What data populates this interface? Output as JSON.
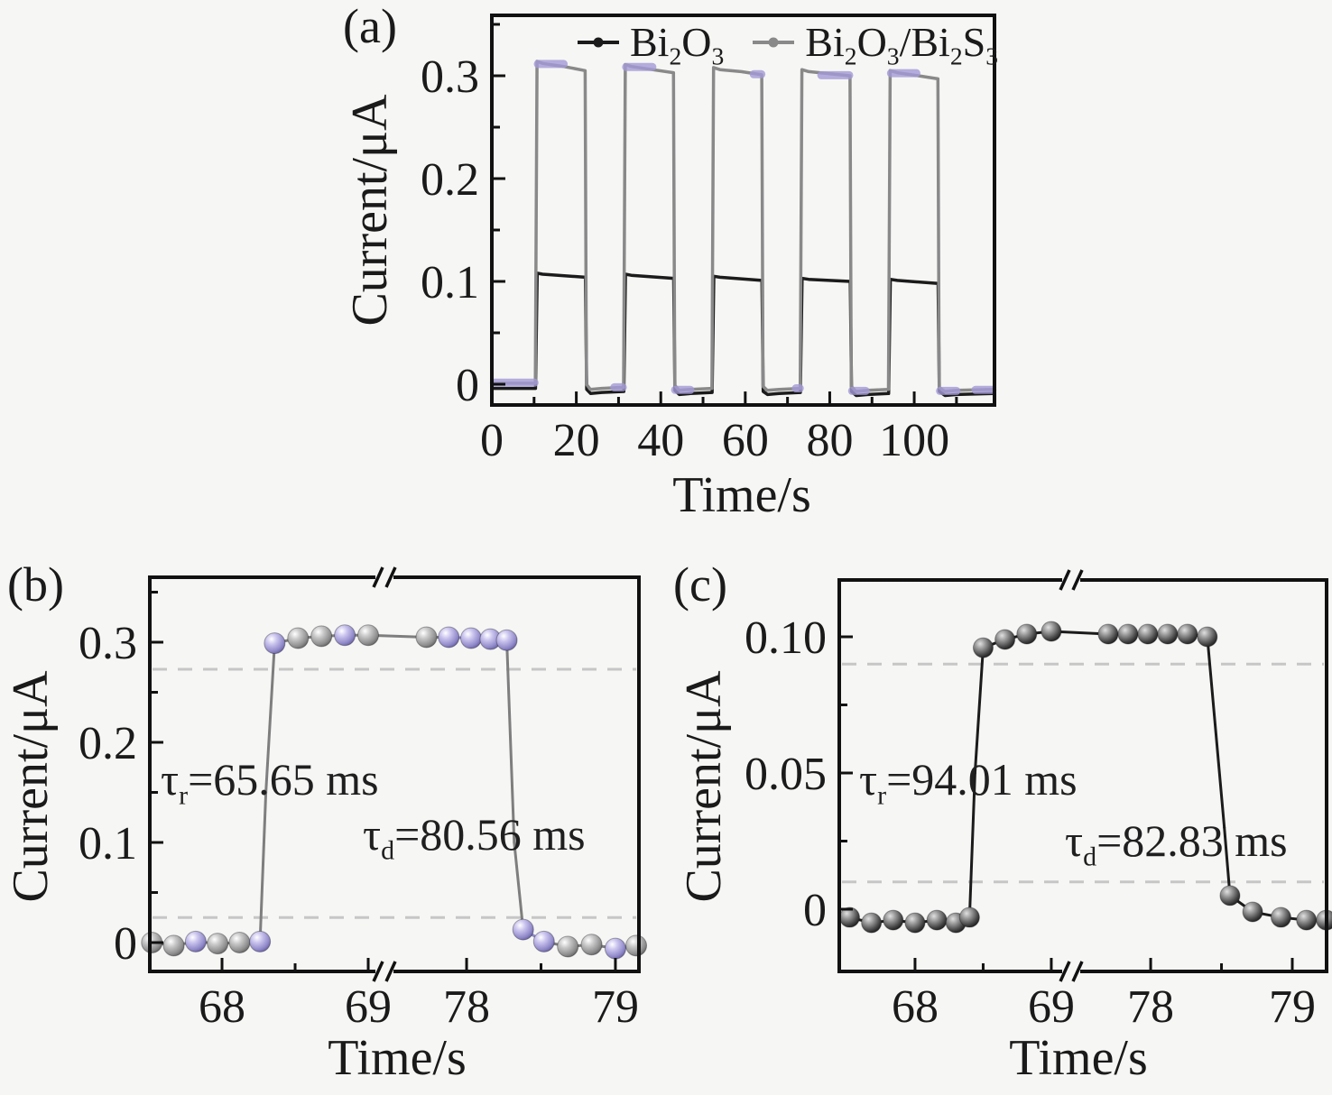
{
  "figure": {
    "background": "#f6f6f4",
    "text_color": "#1a1a1a",
    "accent_lavender": "#9b93cf",
    "series_gray": "#898989",
    "series_black": "#1b1b1b",
    "guide_color": "#c6c6c6"
  },
  "panels": {
    "a": {
      "letter": "(a)",
      "xlabel": "Time/s",
      "ylabel": "Current/μA",
      "legend": [
        {
          "text": "Bi2O3",
          "segments": [
            [
              "Bi",
              0
            ],
            [
              "2",
              1
            ],
            [
              "O",
              0
            ],
            [
              "3",
              1
            ]
          ]
        },
        {
          "text": "Bi2O3/Bi2S3",
          "segments": [
            [
              "Bi",
              0
            ],
            [
              "2",
              1
            ],
            [
              "O",
              0
            ],
            [
              "3",
              1
            ],
            [
              "/Bi",
              0
            ],
            [
              "2",
              1
            ],
            [
              "S",
              0
            ],
            [
              "3",
              1
            ]
          ]
        }
      ]
    },
    "b": {
      "letter": "(b)",
      "xlabel": "Time/s",
      "ylabel": "Current/μA",
      "tau_rise": {
        "text": "τr=65.65 ms",
        "segments": [
          [
            "τ",
            0
          ],
          [
            "r",
            1
          ],
          [
            "=65.65 ms",
            0
          ]
        ]
      },
      "tau_decay": {
        "text": "τd=80.56 ms",
        "segments": [
          [
            "τ",
            0
          ],
          [
            "d",
            1
          ],
          [
            "=80.56 ms",
            0
          ]
        ]
      }
    },
    "c": {
      "letter": "(c)",
      "xlabel": "Time/s",
      "ylabel": "Current/μA",
      "tau_rise": {
        "text": "τr=94.01 ms",
        "segments": [
          [
            "τ",
            0
          ],
          [
            "r",
            1
          ],
          [
            "=94.01 ms",
            0
          ]
        ]
      },
      "tau_decay": {
        "text": "τd=82.83 ms",
        "segments": [
          [
            "τ",
            0
          ],
          [
            "d",
            1
          ],
          [
            "=82.83 ms",
            0
          ]
        ]
      }
    }
  },
  "chart_data": [
    {
      "id": "a",
      "type": "line",
      "title": "Photocurrent on/off cycles",
      "xlabel": "Time/s",
      "ylabel": "Current/μA",
      "xlim": [
        0,
        119
      ],
      "ylim": [
        -0.02,
        0.359
      ],
      "grid": false,
      "legend_position": "top-inside",
      "xticks": [
        {
          "v": 0,
          "l": "0"
        },
        {
          "v": 20,
          "l": "20"
        },
        {
          "v": 40,
          "l": "40"
        },
        {
          "v": 60,
          "l": "60"
        },
        {
          "v": 80,
          "l": "80"
        },
        {
          "v": 100,
          "l": "100"
        }
      ],
      "xminor": [
        10,
        30,
        50,
        70,
        90,
        110
      ],
      "yticks": [
        {
          "v": 0,
          "l": "0"
        },
        {
          "v": 0.1,
          "l": "0.1"
        },
        {
          "v": 0.2,
          "l": "0.2"
        },
        {
          "v": 0.3,
          "l": "0.3"
        }
      ],
      "yminor": [
        0.05,
        0.15,
        0.25,
        0.35
      ],
      "series": [
        {
          "name": "Bi2O3",
          "key": "bi2o3",
          "color": "#1b1b1b",
          "points": [
            [
              0,
              -0.004
            ],
            [
              10.35,
              -0.004
            ],
            [
              10.75,
              0.108
            ],
            [
              12,
              0.107
            ],
            [
              22.15,
              0.104
            ],
            [
              22.45,
              -0.005
            ],
            [
              23.4,
              -0.009
            ],
            [
              26,
              -0.008
            ],
            [
              31.25,
              -0.007
            ],
            [
              31.65,
              0.107
            ],
            [
              33,
              0.106
            ],
            [
              43.05,
              0.103
            ],
            [
              43.35,
              -0.006
            ],
            [
              44.4,
              -0.01
            ],
            [
              47,
              -0.009
            ],
            [
              52.15,
              -0.008
            ],
            [
              52.55,
              0.105
            ],
            [
              54,
              0.104
            ],
            [
              63.95,
              0.101
            ],
            [
              64.25,
              -0.007
            ],
            [
              65.3,
              -0.01
            ],
            [
              68,
              -0.009
            ],
            [
              73.05,
              -0.008
            ],
            [
              73.45,
              0.103
            ],
            [
              75,
              0.102
            ],
            [
              84.85,
              0.1
            ],
            [
              85.15,
              -0.007
            ],
            [
              86.3,
              -0.011
            ],
            [
              89,
              -0.01
            ],
            [
              93.95,
              -0.009
            ],
            [
              94.35,
              0.102
            ],
            [
              96,
              0.101
            ],
            [
              105.65,
              0.098
            ],
            [
              105.95,
              -0.007
            ],
            [
              107.3,
              -0.011
            ],
            [
              110,
              -0.01
            ],
            [
              118.7,
              -0.009
            ]
          ]
        },
        {
          "name": "Bi2O3/Bi2S3",
          "key": "bi2o3-bi2s3",
          "color": "#898989",
          "accent_color": "#a29ad6",
          "points": [
            [
              0,
              0.001
            ],
            [
              10.3,
              0.001
            ],
            [
              10.7,
              0.314
            ],
            [
              12,
              0.312
            ],
            [
              17,
              0.309
            ],
            [
              22.1,
              0.305
            ],
            [
              22.4,
              0
            ],
            [
              23.3,
              -0.005
            ],
            [
              26,
              -0.004
            ],
            [
              31.2,
              -0.003
            ],
            [
              31.6,
              0.311
            ],
            [
              33,
              0.309
            ],
            [
              38,
              0.306
            ],
            [
              43,
              0.303
            ],
            [
              43.3,
              -0.001
            ],
            [
              44.3,
              -0.006
            ],
            [
              47,
              -0.005
            ],
            [
              52.1,
              -0.004
            ],
            [
              52.5,
              0.308
            ],
            [
              54,
              0.306
            ],
            [
              59,
              0.304
            ],
            [
              63.9,
              0.301
            ],
            [
              64.2,
              -0.002
            ],
            [
              65.2,
              -0.006
            ],
            [
              68,
              -0.005
            ],
            [
              73,
              -0.004
            ],
            [
              73.4,
              0.306
            ],
            [
              75,
              0.304
            ],
            [
              80,
              0.302
            ],
            [
              84.8,
              0.3
            ],
            [
              85.1,
              -0.002
            ],
            [
              86.2,
              -0.007
            ],
            [
              89,
              -0.006
            ],
            [
              93.9,
              -0.005
            ],
            [
              94.3,
              0.305
            ],
            [
              96,
              0.303
            ],
            [
              101,
              0.3
            ],
            [
              105.6,
              0.297
            ],
            [
              105.9,
              -0.003
            ],
            [
              107.2,
              -0.007
            ],
            [
              110,
              -0.006
            ],
            [
              118.7,
              -0.005
            ]
          ],
          "accent_overlays": [
            [
              0.5,
              10.1,
              0.0015
            ],
            [
              10.9,
              17,
              0.3115
            ],
            [
              31.8,
              38,
              0.3085
            ],
            [
              29,
              31,
              -0.003
            ],
            [
              43.4,
              47,
              -0.0055
            ],
            [
              62,
              63.8,
              0.3015
            ],
            [
              72,
              72.9,
              -0.004
            ],
            [
              78,
              84.6,
              0.3005
            ],
            [
              85.3,
              88.5,
              -0.0065
            ],
            [
              94.5,
              100.5,
              0.3025
            ],
            [
              106.1,
              110,
              -0.0065
            ],
            [
              114.5,
              118.5,
              -0.0055
            ]
          ]
        }
      ]
    },
    {
      "id": "b",
      "type": "line",
      "title": "Bi2O3/Bi2S3 rise/decay zoom",
      "xlabel": "Time/s",
      "ylabel": "Current/μA",
      "ylim": [
        -0.0288,
        0.3595
      ],
      "x_break": {
        "segments": [
          {
            "t0": 67.506,
            "t1": 69.111
          },
          {
            "t0": 77.448,
            "t1": 79.158
          }
        ]
      },
      "xticks": [
        {
          "v": 68,
          "l": "68"
        },
        {
          "v": 69,
          "l": "69"
        },
        {
          "v": 78,
          "l": "78"
        },
        {
          "v": 79,
          "l": "79"
        }
      ],
      "xminor": [
        68.5,
        78.5
      ],
      "yticks": [
        {
          "v": 0,
          "l": "0"
        },
        {
          "v": 0.1,
          "l": "0.1"
        },
        {
          "v": 0.2,
          "l": "0.2"
        },
        {
          "v": 0.3,
          "l": "0.3"
        }
      ],
      "yminor": [
        0.05,
        0.15,
        0.25,
        0.35
      ],
      "guides": [
        0.273,
        0.025
      ],
      "annotations": {
        "tau_rise_ms": 65.65,
        "tau_decay_ms": 80.56
      },
      "series": [
        {
          "name": "Bi2O3/Bi2S3",
          "key": "bi2o3-bi2s3-zoom",
          "color": "#7e7e7e",
          "accent_color": "#8f88c8",
          "marker": "sphere",
          "marker_radius": 11.5,
          "points": [
            [
              67.52,
              0,
              "g"
            ],
            [
              67.67,
              -0.003,
              "g"
            ],
            [
              67.82,
              0.001,
              "p"
            ],
            [
              67.97,
              -0.001,
              "g"
            ],
            [
              68.12,
              0,
              "g"
            ],
            [
              68.26,
              0.001,
              "p"
            ],
            [
              68.3,
              0.15,
              "n"
            ],
            [
              68.36,
              0.299,
              "p"
            ],
            [
              68.52,
              0.304,
              "g"
            ],
            [
              68.68,
              0.306,
              "g"
            ],
            [
              68.84,
              0.307,
              "p"
            ],
            [
              69,
              0.307,
              "g"
            ],
            [
              77.73,
              0.305,
              "g"
            ],
            [
              77.88,
              0.305,
              "p"
            ],
            [
              78.03,
              0.304,
              "p"
            ],
            [
              78.16,
              0.303,
              "p"
            ],
            [
              78.27,
              0.302,
              "p"
            ],
            [
              78.32,
              0.1,
              "n"
            ],
            [
              78.38,
              0.013,
              "p"
            ],
            [
              78.52,
              0.001,
              "p"
            ],
            [
              78.68,
              -0.004,
              "g"
            ],
            [
              78.84,
              -0.002,
              "g"
            ],
            [
              79,
              -0.006,
              "p"
            ],
            [
              79.14,
              -0.003,
              "g"
            ]
          ]
        }
      ]
    },
    {
      "id": "c",
      "type": "line",
      "title": "Bi2O3 rise/decay zoom",
      "xlabel": "Time/s",
      "ylabel": "Current/μA",
      "ylim": [
        -0.0228,
        0.1215
      ],
      "x_break": {
        "segments": [
          {
            "t0": 67.444,
            "t1": 69.146
          },
          {
            "t0": 77.439,
            "t1": 79.242
          }
        ]
      },
      "xticks": [
        {
          "v": 68,
          "l": "68"
        },
        {
          "v": 69,
          "l": "69"
        },
        {
          "v": 78,
          "l": "78"
        },
        {
          "v": 79,
          "l": "79"
        }
      ],
      "xminor": [
        68.5,
        78.5
      ],
      "yticks": [
        {
          "v": 0,
          "l": "0"
        },
        {
          "v": 0.05,
          "l": "0.05"
        },
        {
          "v": 0.1,
          "l": "0.10"
        }
      ],
      "yminor": [
        0.025,
        0.075
      ],
      "guides": [
        0.09,
        0.01
      ],
      "annotations": {
        "tau_rise_ms": 94.01,
        "tau_decay_ms": 82.83
      },
      "series": [
        {
          "name": "Bi2O3",
          "key": "bi2o3-zoom",
          "color": "#1b1b1b",
          "marker": "sphere",
          "marker_radius": 11,
          "points": [
            [
              67.52,
              -0.003,
              "k"
            ],
            [
              67.68,
              -0.005,
              "k"
            ],
            [
              67.84,
              -0.004,
              "k"
            ],
            [
              68,
              -0.005,
              "k"
            ],
            [
              68.16,
              -0.004,
              "k"
            ],
            [
              68.3,
              -0.005,
              "k"
            ],
            [
              68.4,
              -0.003,
              "k"
            ],
            [
              68.44,
              0.05,
              "n"
            ],
            [
              68.5,
              0.096,
              "k"
            ],
            [
              68.66,
              0.099,
              "k"
            ],
            [
              68.82,
              0.101,
              "k"
            ],
            [
              69,
              0.102,
              "k"
            ],
            [
              77.7,
              0.101,
              "k"
            ],
            [
              77.84,
              0.101,
              "k"
            ],
            [
              77.98,
              0.101,
              "k"
            ],
            [
              78.12,
              0.101,
              "k"
            ],
            [
              78.26,
              0.101,
              "k"
            ],
            [
              78.4,
              0.1,
              "k"
            ],
            [
              78.52,
              0.03,
              "n"
            ],
            [
              78.56,
              0.005,
              "k"
            ],
            [
              78.72,
              -0.001,
              "k"
            ],
            [
              78.92,
              -0.003,
              "k"
            ],
            [
              79.1,
              -0.004,
              "k"
            ],
            [
              79.24,
              -0.004,
              "k"
            ]
          ]
        }
      ]
    }
  ]
}
